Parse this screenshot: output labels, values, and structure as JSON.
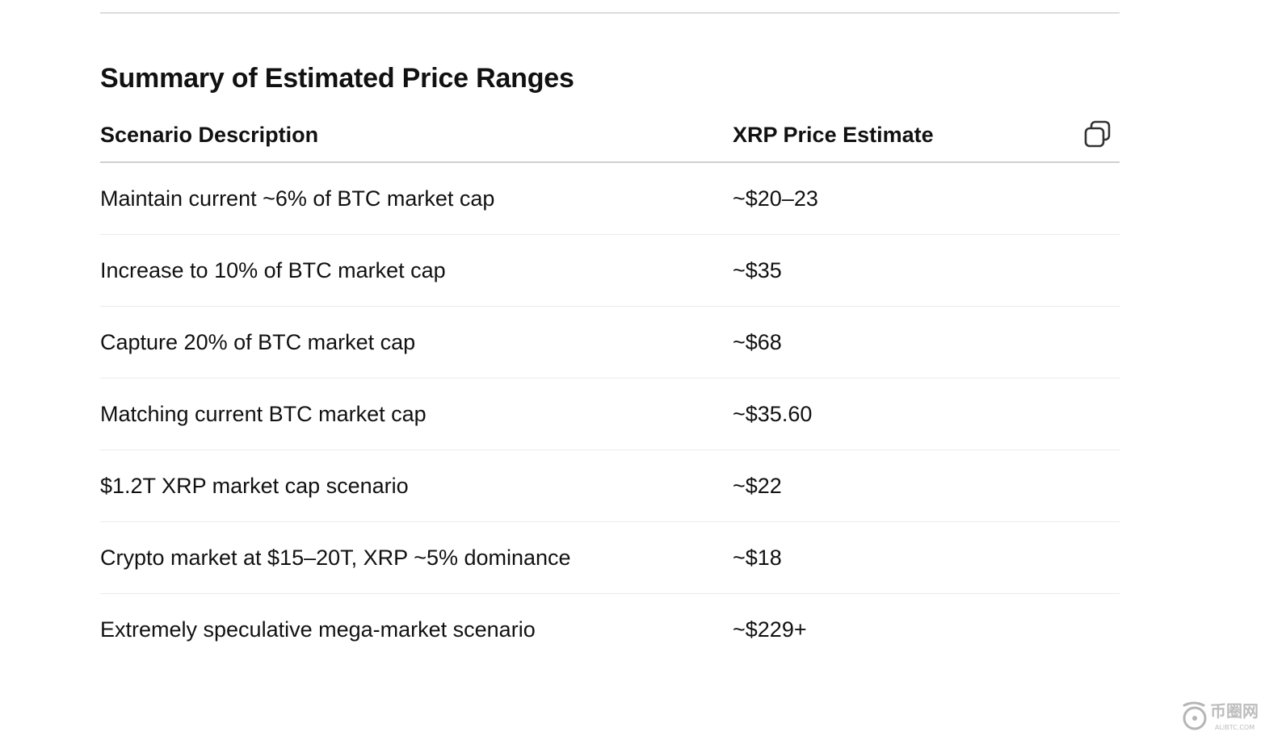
{
  "section": {
    "title": "Summary of Estimated Price Ranges"
  },
  "table": {
    "headers": [
      "Scenario Description",
      "XRP Price Estimate"
    ],
    "rows": [
      [
        "Maintain current ~6% of BTC market cap",
        "~$20–23"
      ],
      [
        "Increase to 10% of BTC market cap",
        "~$35"
      ],
      [
        "Capture 20% of BTC market cap",
        "~$68"
      ],
      [
        "Matching current BTC market cap",
        "~$35.60"
      ],
      [
        "$1.2T XRP market cap scenario",
        "~$22"
      ],
      [
        "Crypto market at $15–20T, XRP ~5% dominance",
        "~$18"
      ],
      [
        "Extremely speculative mega-market scenario",
        "~$229+"
      ]
    ]
  },
  "icons": {
    "copy": "copy-icon",
    "watermark": "alibtc-logo"
  },
  "watermark": {
    "name": "币圈网",
    "url": "ALIBTC.COM"
  }
}
